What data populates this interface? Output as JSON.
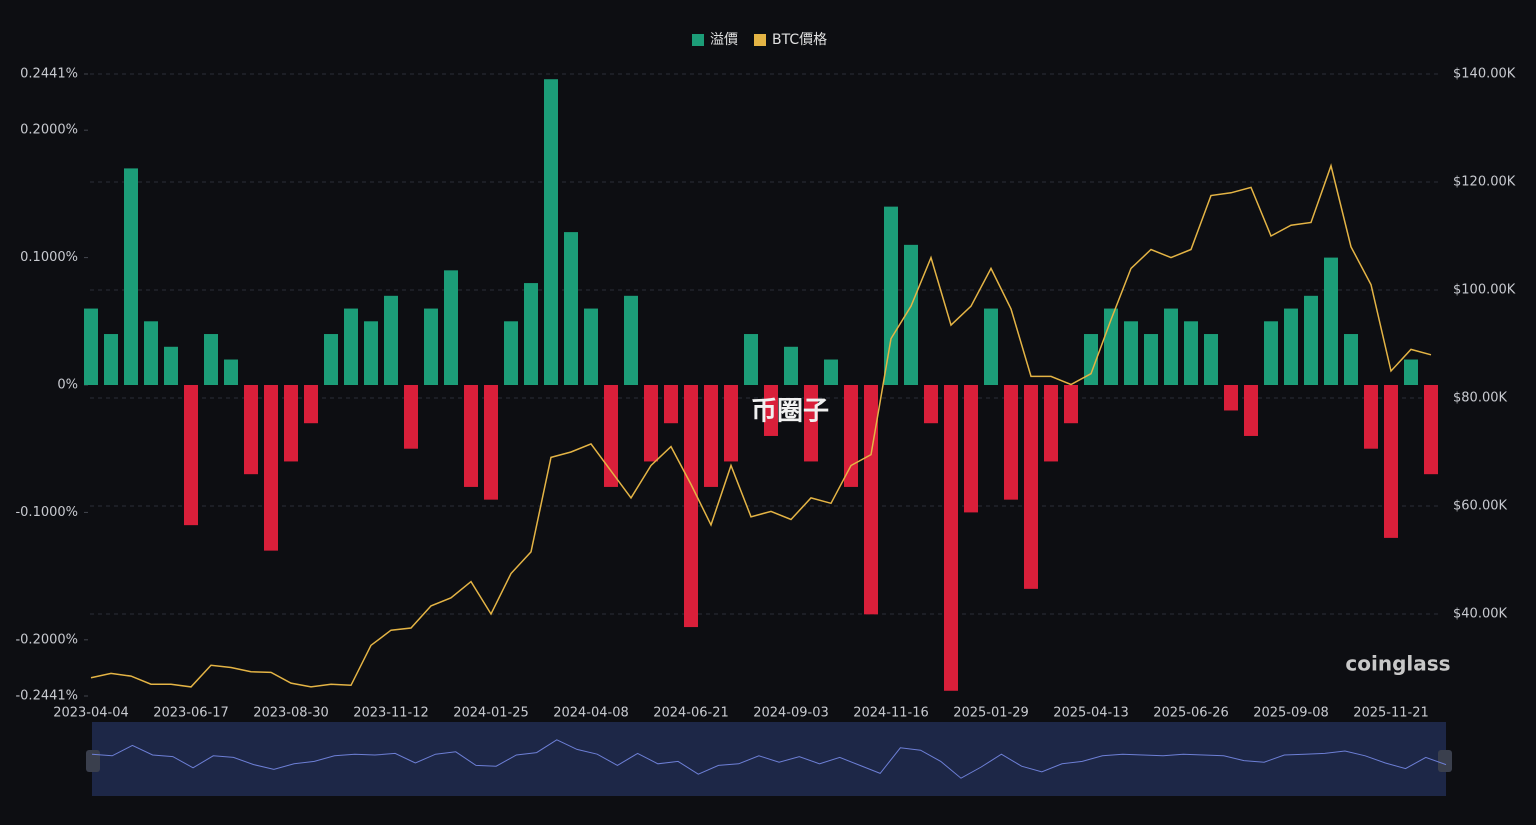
{
  "chart_data": {
    "type": "bar-line",
    "categories": [
      "2023-04-04",
      null,
      null,
      null,
      null,
      "2023-06-17",
      null,
      null,
      null,
      null,
      "2023-08-30",
      null,
      null,
      null,
      null,
      "2023-11-12",
      null,
      null,
      null,
      null,
      "2024-01-25",
      null,
      null,
      null,
      null,
      "2024-04-08",
      null,
      null,
      null,
      null,
      "2024-06-21",
      null,
      null,
      null,
      null,
      "2024-09-03",
      null,
      null,
      null,
      null,
      "2024-11-16",
      null,
      null,
      null,
      null,
      "2025-01-29",
      null,
      null,
      null,
      null,
      "2025-04-13",
      null,
      null,
      null,
      null,
      "2025-06-26",
      null,
      null,
      null,
      null,
      "2025-09-08",
      null,
      null,
      null,
      null,
      "2025-11-21",
      null,
      null
    ],
    "series": [
      {
        "name": "溢價",
        "color": "#1c9d78",
        "negative_color": "#d91f3a",
        "values": [
          0.06,
          0.04,
          0.17,
          0.05,
          0.03,
          -0.11,
          0.04,
          0.02,
          -0.07,
          -0.13,
          -0.06,
          -0.03,
          0.04,
          0.06,
          0.05,
          0.07,
          -0.05,
          0.06,
          0.09,
          -0.08,
          -0.09,
          0.05,
          0.08,
          0.24,
          0.12,
          0.06,
          -0.08,
          0.07,
          -0.06,
          -0.03,
          -0.19,
          -0.08,
          -0.06,
          0.04,
          -0.04,
          0.03,
          -0.06,
          0.02,
          -0.08,
          -0.18,
          0.14,
          0.11,
          -0.03,
          -0.24,
          -0.1,
          0.06,
          -0.09,
          -0.16,
          -0.06,
          -0.03,
          0.04,
          0.06,
          0.05,
          0.04,
          0.06,
          0.05,
          0.04,
          -0.02,
          -0.04,
          0.05,
          0.06,
          0.07,
          0.1,
          0.04,
          -0.05,
          -0.12,
          0.02,
          -0.07
        ]
      },
      {
        "name": "BTC價格",
        "color": "#e4b445",
        "axis": "y2",
        "values": [
          28200,
          29000,
          28500,
          27000,
          27000,
          26500,
          30500,
          30100,
          29300,
          29200,
          27200,
          26500,
          27000,
          26800,
          34200,
          37000,
          37400,
          41500,
          43000,
          46000,
          40000,
          47500,
          51500,
          69000,
          70000,
          71500,
          66500,
          61500,
          67500,
          71000,
          64000,
          56500,
          67500,
          58000,
          59000,
          57500,
          61500,
          60500,
          67500,
          69500,
          91000,
          97000,
          106000,
          93500,
          97000,
          104000,
          96500,
          84000,
          84000,
          82500,
          84500,
          94500,
          104000,
          107500,
          106000,
          107500,
          117500,
          118000,
          119000,
          110000,
          112000,
          112500,
          123000,
          108000,
          101000,
          85000,
          89000,
          88000
        ]
      }
    ],
    "ylim": [
      -0.2441,
      0.2441
    ],
    "yticks": [
      {
        "value": -0.2441,
        "label": "-0.2441%"
      },
      {
        "value": -0.2,
        "label": "-0.2000%"
      },
      {
        "value": -0.1,
        "label": "-0.1000%"
      },
      {
        "value": 0,
        "label": "0%"
      },
      {
        "value": 0.1,
        "label": "0.1000%"
      },
      {
        "value": 0.2,
        "label": "0.2000%"
      },
      {
        "value": 0.2441,
        "label": "0.2441%"
      }
    ],
    "y2lim": [
      24815,
      140000
    ],
    "y2ticks": [
      {
        "value": 40000,
        "label": "$40.00K"
      },
      {
        "value": 60000,
        "label": "$60.00K"
      },
      {
        "value": 80000,
        "label": "$80.00K"
      },
      {
        "value": 100000,
        "label": "$100.00K"
      },
      {
        "value": 120000,
        "label": "$120.00K"
      },
      {
        "value": 140000,
        "label": "$140.00K"
      }
    ],
    "grid": true,
    "watermarks": [
      "币圈子",
      "coinglass"
    ]
  }
}
